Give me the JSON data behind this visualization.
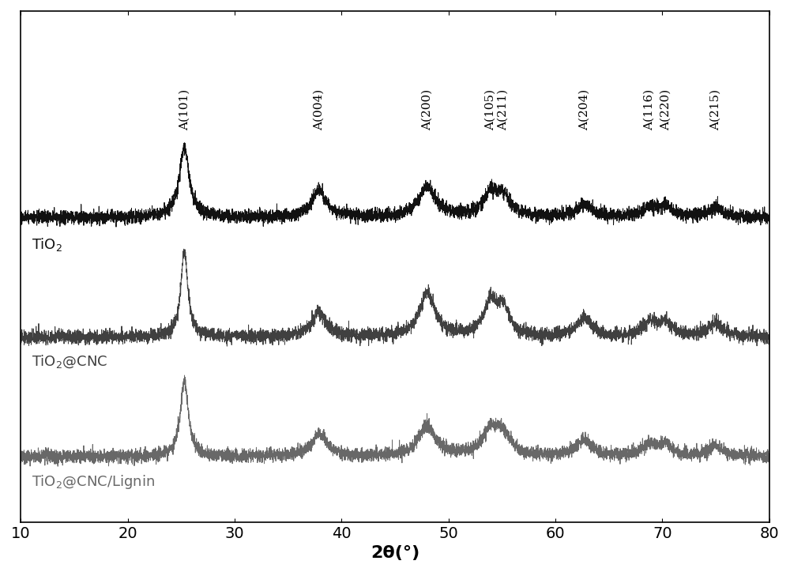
{
  "x_min": 10,
  "x_max": 80,
  "xlabel": "2θ(°)",
  "xlabel_fontsize": 16,
  "tick_fontsize": 14,
  "background_color": "#ffffff",
  "line_color_tio2": "#111111",
  "line_color_cnc": "#404040",
  "line_color_lignin": "#686868",
  "peaks_ordered": [
    "A(101)",
    "A(004)",
    "A(200)",
    "A(105)",
    "A(211)",
    "A(204)",
    "A(116)",
    "A(220)",
    "A(215)"
  ],
  "peak_positions": {
    "A(101)": 25.3,
    "A(004)": 37.9,
    "A(200)": 48.0,
    "A(105)": 53.9,
    "A(211)": 55.1,
    "A(204)": 62.7,
    "A(116)": 68.8,
    "A(220)": 70.3,
    "A(215)": 75.0
  },
  "sample_labels": [
    "TiO$_2$",
    "TiO$_2$@CNC",
    "TiO$_2$@CNC/Lignin"
  ],
  "offsets": [
    0.44,
    0.22,
    0.0
  ],
  "noise_scale": 0.006,
  "peak_widths_tio2": {
    "25.3": 0.55,
    "37.9": 0.8,
    "48.0": 1.0,
    "53.9": 0.8,
    "55.1": 0.8,
    "62.7": 0.9,
    "68.8": 0.8,
    "70.3": 0.8,
    "75.0": 0.8
  },
  "peak_heights_tio2": {
    "25.3": 0.13,
    "37.9": 0.05,
    "48.0": 0.055,
    "53.9": 0.04,
    "55.1": 0.035,
    "62.7": 0.022,
    "68.8": 0.018,
    "70.3": 0.018,
    "75.0": 0.018
  },
  "peak_heights_cnc": {
    "25.3": 0.16,
    "37.9": 0.045,
    "48.0": 0.08,
    "53.9": 0.06,
    "55.1": 0.05,
    "62.7": 0.035,
    "68.8": 0.025,
    "70.3": 0.025,
    "75.0": 0.025
  },
  "peak_heights_lignin": {
    "25.3": 0.14,
    "37.9": 0.04,
    "48.0": 0.055,
    "53.9": 0.042,
    "55.1": 0.038,
    "62.7": 0.03,
    "68.8": 0.02,
    "70.3": 0.02,
    "75.0": 0.02
  },
  "peak_widths_cnc": {
    "25.3": 0.4,
    "37.9": 0.8,
    "48.0": 0.9,
    "53.9": 0.7,
    "55.1": 0.7,
    "62.7": 0.8,
    "68.8": 0.8,
    "70.3": 0.8,
    "75.0": 0.8
  },
  "peak_widths_lignin": {
    "25.3": 0.45,
    "37.9": 0.9,
    "48.0": 1.0,
    "53.9": 0.9,
    "55.1": 0.9,
    "62.7": 0.9,
    "68.8": 0.8,
    "70.3": 0.8,
    "75.0": 0.8
  }
}
